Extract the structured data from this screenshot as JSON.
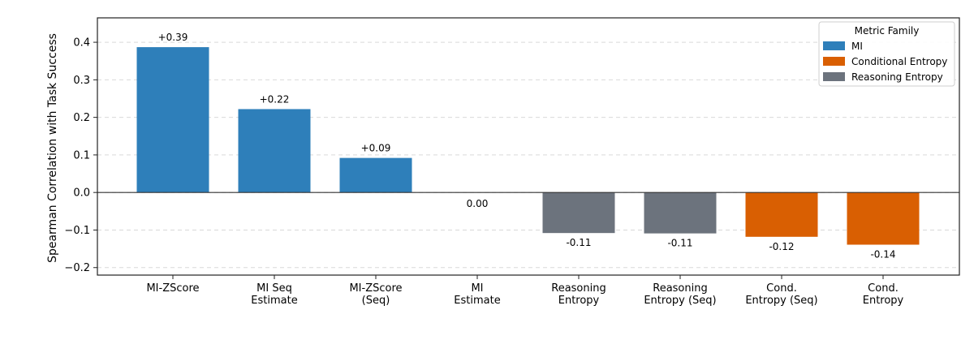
{
  "chart_data": {
    "type": "bar",
    "categories": [
      [
        "MI-ZScore"
      ],
      [
        "MI Seq",
        "Estimate"
      ],
      [
        "MI-ZScore",
        "(Seq)"
      ],
      [
        "MI",
        "Estimate"
      ],
      [
        "Reasoning",
        "Entropy"
      ],
      [
        "Reasoning",
        "Entropy (Seq)"
      ],
      [
        "Cond.",
        "Entropy (Seq)"
      ],
      [
        "Cond.",
        "Entropy"
      ]
    ],
    "values": [
      0.387,
      0.222,
      0.092,
      0.0,
      -0.108,
      -0.109,
      -0.118,
      -0.139
    ],
    "value_labels": [
      "+0.39",
      "+0.22",
      "+0.09",
      "0.00",
      "-0.11",
      "-0.11",
      "-0.12",
      "-0.14"
    ],
    "families": [
      "MI",
      "MI",
      "MI",
      "MI",
      "Reasoning Entropy",
      "Reasoning Entropy",
      "Conditional Entropy",
      "Conditional Entropy"
    ],
    "ylabel": "Spearman Correlation with Task Success",
    "xlabel": "",
    "ylim": [
      -0.22,
      0.465
    ],
    "yticks": [
      -0.2,
      -0.1,
      0.0,
      0.1,
      0.2,
      0.3,
      0.4
    ],
    "ytick_labels": [
      "−0.2",
      "−0.1",
      "0.0",
      "0.1",
      "0.2",
      "0.3",
      "0.4"
    ],
    "grid": "y-dashed",
    "legend": {
      "title": "Metric Family",
      "position": "top-right",
      "entries": [
        {
          "name": "MI",
          "color": "#2e7fba"
        },
        {
          "name": "Conditional Entropy",
          "color": "#d95f02"
        },
        {
          "name": "Reasoning Entropy",
          "color": "#6c737d"
        }
      ]
    },
    "colors": {
      "MI": "#2e7fba",
      "Conditional Entropy": "#d95f02",
      "Reasoning Entropy": "#6c737d"
    }
  }
}
